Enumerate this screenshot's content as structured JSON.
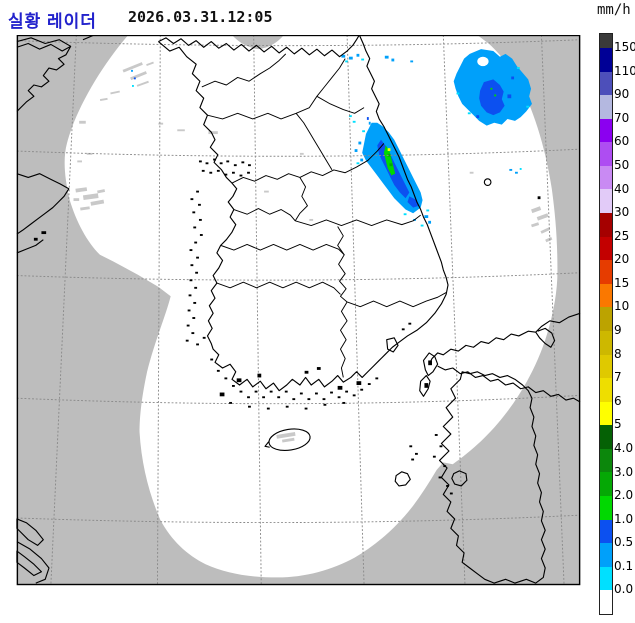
{
  "header": {
    "title": "실황 레이더",
    "timestamp": "2026.03.31.12:05"
  },
  "legend": {
    "unit": "mm/h",
    "segments": [
      {
        "color": "#3a3a3a",
        "label": "150"
      },
      {
        "color": "#000096",
        "label": "110"
      },
      {
        "color": "#4d4fba",
        "label": "90"
      },
      {
        "color": "#b4b8e0",
        "label": "70"
      },
      {
        "color": "#8b00f0",
        "label": "60"
      },
      {
        "color": "#ae4df2",
        "label": "50"
      },
      {
        "color": "#c98af3",
        "label": "40"
      },
      {
        "color": "#e2cbf8",
        "label": "30"
      },
      {
        "color": "#a50000",
        "label": "25"
      },
      {
        "color": "#c30000",
        "label": "20"
      },
      {
        "color": "#e63c00",
        "label": "15"
      },
      {
        "color": "#fa7800",
        "label": "10"
      },
      {
        "color": "#bca300",
        "label": "9"
      },
      {
        "color": "#cdb800",
        "label": "8"
      },
      {
        "color": "#dfc900",
        "label": "7"
      },
      {
        "color": "#eede00",
        "label": "6"
      },
      {
        "color": "#ffff00",
        "label": "5"
      },
      {
        "color": "#056105",
        "label": "4.0"
      },
      {
        "color": "#0c870c",
        "label": "3.0"
      },
      {
        "color": "#05a805",
        "label": "2.0"
      },
      {
        "color": "#01d801",
        "label": "1.0"
      },
      {
        "color": "#0c50f0",
        "label": "0.5"
      },
      {
        "color": "#00a0fa",
        "label": "0.1"
      },
      {
        "color": "#00e0ff",
        "label": "0.0"
      },
      {
        "color": "#ffffff",
        "label": ""
      }
    ]
  },
  "map": {
    "background_color": "#bdbdbd",
    "coverage_color": "#ffffff",
    "clutter_color": "#c9c9c9",
    "precip_colors": {
      "rain_0_0": "#00e0ff",
      "rain_0_1": "#00a0fa",
      "rain_0_5": "#0c50f0",
      "rain_1_0": "#01d801",
      "rain_2_0": "#05a805",
      "rain_5_0": "#ffff00"
    }
  }
}
